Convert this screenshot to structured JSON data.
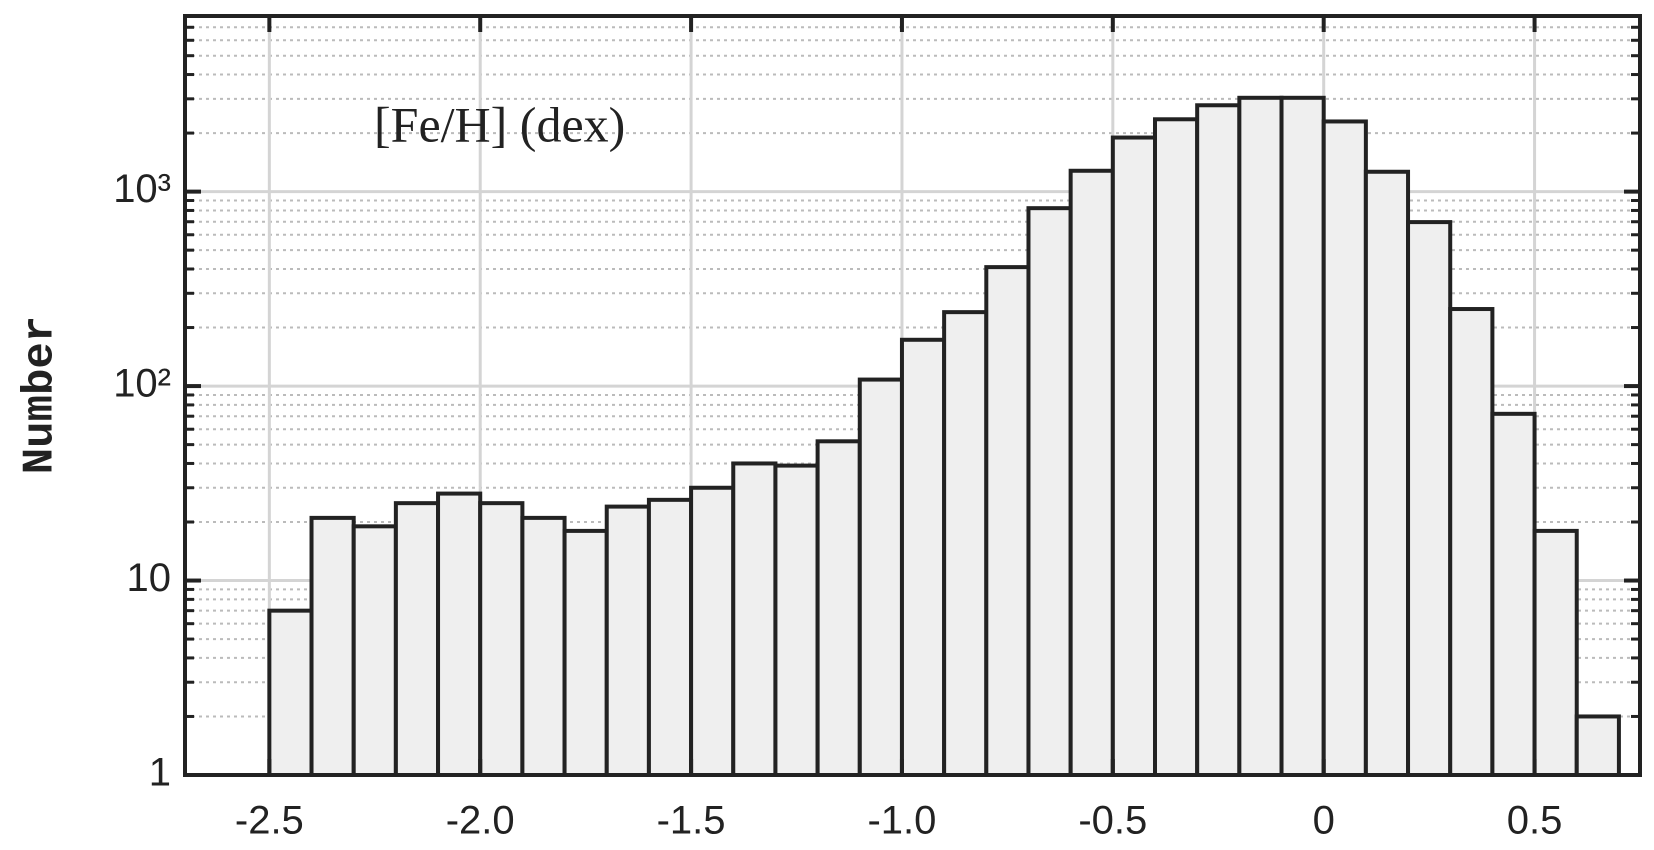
{
  "chart_data": {
    "type": "histogram",
    "annotation": "[Fe/H] (dex)",
    "ylabel": "Number",
    "bins": [
      -2.5,
      -2.4,
      -2.3,
      -2.2,
      -2.1,
      -2.0,
      -1.9,
      -1.8,
      -1.7,
      -1.6,
      -1.5,
      -1.4,
      -1.3,
      -1.2,
      -1.1,
      -1.0,
      -0.9,
      -0.8,
      -0.7,
      -0.6,
      -0.5,
      -0.4,
      -0.3,
      -0.2,
      -0.1,
      0,
      0.1,
      0.2,
      0.3,
      0.4,
      0.5,
      0.6,
      0.7
    ],
    "values": [
      7,
      21,
      19,
      25,
      28,
      25,
      21,
      18,
      24,
      26,
      30,
      40,
      39,
      52,
      108,
      173,
      240,
      409,
      822,
      1280,
      1897,
      2355,
      2780,
      3037,
      3037,
      2295,
      1265,
      697,
      249,
      72,
      18,
      2
    ],
    "color": "#efefef",
    "edgecolor": "#222222",
    "xlim": [
      -2.7,
      0.75
    ],
    "xticks": [
      -2.5,
      {
        "value": -2.0,
        "label": "-2.0"
      },
      -1.5,
      {
        "value": -1.0,
        "label": "-1.0"
      },
      -0.5,
      0,
      0.5
    ],
    "ylim": [
      1,
      8000
    ],
    "log_y": true,
    "yticks": [
      1,
      10,
      {
        "value": 100,
        "label": "10²"
      },
      {
        "value": 1000,
        "label": "10³"
      }
    ],
    "yminorticks": [
      2,
      3,
      4,
      5,
      6,
      7,
      8,
      9,
      20,
      30,
      40,
      50,
      60,
      70,
      80,
      90,
      200,
      300,
      400,
      500,
      600,
      700,
      800,
      900,
      2000,
      3000,
      4000,
      5000,
      6000,
      7000,
      8000
    ],
    "grid": true
  }
}
